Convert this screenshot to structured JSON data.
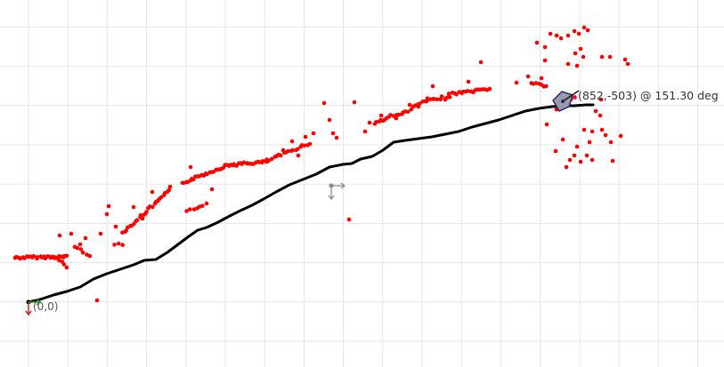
{
  "origin_label": "(0,0)",
  "pose_label": "(852,-503) @ 151.30 deg",
  "pose": {
    "x": 852,
    "y": -503,
    "heading_deg": 151.3
  },
  "colors": {
    "background": "#ffffff",
    "grid": "#e6e6e6",
    "trajectory": "#000000",
    "scan_points": "#ff0000",
    "axis_x": "#22aa22",
    "axis_y": "#cc2222",
    "axis_marker": "#888888",
    "robot_body": "#9a9aaa",
    "robot_outline": "#2a2a6a"
  },
  "icons": {
    "origin_axes": "origin-axes-icon",
    "reference_axes": "reference-axes-icon",
    "robot": "robot-pose-icon"
  }
}
